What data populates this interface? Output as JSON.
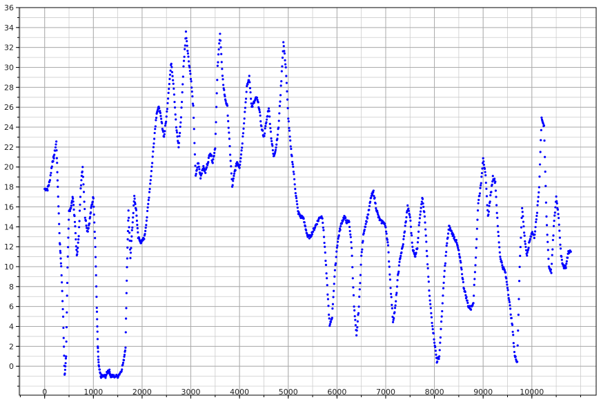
{
  "chart_data": {
    "type": "scatter",
    "title": "",
    "xlabel": "",
    "ylabel": "",
    "xlim": [
      -520,
      11320
    ],
    "ylim": [
      -2.9,
      36
    ],
    "x_major_ticks": [
      0,
      1000,
      2000,
      3000,
      4000,
      5000,
      6000,
      7000,
      8000,
      9000,
      10000
    ],
    "x_minor_step": 500,
    "y_major_ticks": [
      0,
      2,
      4,
      6,
      8,
      10,
      12,
      14,
      16,
      18,
      20,
      22,
      24,
      26,
      28,
      30,
      32,
      34,
      36
    ],
    "y_minor_step": 1,
    "grid": true,
    "legend": "none",
    "marker_color": "#0000ff",
    "series": [
      {
        "x": [
          0,
          60,
          100,
          160,
          190,
          240,
          270,
          310,
          340,
          380,
          410,
          440,
          470,
          500,
          540,
          580,
          620,
          660,
          700,
          740,
          780,
          830,
          880,
          920,
          960,
          1000,
          1040,
          1070,
          1090,
          1110,
          1150,
          1200,
          1250,
          1300,
          1330,
          1360,
          1420,
          1500,
          1570,
          1620,
          1660,
          1690,
          1720,
          1760,
          1800,
          1840,
          1880,
          1920,
          1960,
          2000,
          2050,
          2100,
          2150,
          2200,
          2250,
          2300,
          2350,
          2400,
          2450,
          2500,
          2550,
          2600,
          2650,
          2700,
          2750,
          2800,
          2850,
          2900,
          2950,
          3000,
          3050,
          3100,
          3150,
          3200,
          3250,
          3300,
          3350,
          3400,
          3450,
          3500,
          3550,
          3600,
          3650,
          3700,
          3750,
          3800,
          3850,
          3900,
          3950,
          4000,
          4050,
          4100,
          4150,
          4200,
          4250,
          4300,
          4350,
          4400,
          4450,
          4500,
          4550,
          4600,
          4650,
          4700,
          4750,
          4800,
          4850,
          4900,
          4950,
          5000,
          5050,
          5100,
          5150,
          5200,
          5250,
          5300,
          5350,
          5400,
          5450,
          5500,
          5550,
          5600,
          5650,
          5700,
          5750,
          5800,
          5850,
          5900,
          5950,
          6000,
          6050,
          6100,
          6150,
          6200,
          6250,
          6300,
          6350,
          6400,
          6450,
          6500,
          6550,
          6600,
          6650,
          6700,
          6750,
          6800,
          6850,
          6900,
          6950,
          7000,
          7050,
          7100,
          7150,
          7200,
          7250,
          7300,
          7350,
          7400,
          7450,
          7500,
          7550,
          7600,
          7650,
          7700,
          7750,
          7800,
          7850,
          7900,
          7950,
          8000,
          8050,
          8100,
          8150,
          8200,
          8250,
          8300,
          8350,
          8400,
          8450,
          8500,
          8550,
          8600,
          8650,
          8700,
          8750,
          8800,
          8850,
          8900,
          8950,
          9000,
          9050,
          9100,
          9150,
          9200,
          9250,
          9300,
          9350,
          9400,
          9450,
          9500,
          9550,
          9600,
          9650,
          9700,
          9750,
          9800,
          9850,
          9900,
          9950,
          10000,
          10050,
          10100,
          10150,
          10200,
          10250,
          10300,
          10350,
          10400,
          10450,
          10500,
          10550,
          10600,
          10650,
          10700,
          10750,
          10800
        ],
        "y": [
          17.8,
          17.8,
          18.5,
          20.5,
          21.0,
          22.5,
          18.0,
          12.5,
          10.0,
          5.0,
          -1.0,
          1.0,
          10.0,
          15.5,
          16.0,
          17.0,
          14.5,
          11.0,
          13.0,
          18.0,
          20.0,
          15.0,
          13.5,
          14.5,
          16.0,
          17.0,
          12.0,
          6.0,
          2.0,
          0.0,
          -1.0,
          -1.0,
          -1.0,
          -0.5,
          -0.5,
          -1.0,
          -1.0,
          -1.0,
          -0.5,
          0.5,
          2.0,
          10.0,
          15.5,
          11.0,
          14.0,
          17.0,
          15.5,
          13.0,
          12.5,
          12.5,
          13.0,
          15.0,
          17.5,
          20.0,
          23.0,
          25.5,
          26.0,
          24.5,
          23.0,
          25.0,
          28.0,
          30.5,
          28.0,
          24.0,
          22.0,
          25.0,
          30.0,
          33.5,
          31.0,
          29.0,
          26.0,
          19.0,
          20.5,
          19.0,
          20.0,
          19.5,
          20.5,
          21.5,
          20.5,
          22.0,
          30.0,
          33.5,
          29.0,
          27.0,
          26.0,
          22.0,
          18.0,
          19.5,
          20.5,
          20.0,
          22.0,
          25.0,
          28.0,
          29.0,
          26.0,
          26.5,
          27.0,
          26.0,
          24.0,
          23.0,
          24.5,
          26.0,
          23.0,
          21.0,
          22.0,
          24.0,
          28.0,
          32.5,
          30.0,
          25.0,
          22.0,
          20.0,
          17.5,
          15.5,
          15.0,
          15.0,
          14.0,
          13.0,
          13.0,
          13.5,
          14.0,
          14.5,
          15.0,
          15.0,
          12.0,
          8.0,
          4.0,
          5.0,
          9.0,
          12.0,
          13.5,
          14.5,
          15.0,
          14.5,
          14.5,
          12.0,
          6.0,
          3.0,
          6.0,
          11.0,
          13.5,
          14.5,
          15.5,
          17.0,
          17.5,
          16.0,
          15.0,
          14.5,
          14.5,
          14.0,
          12.0,
          8.0,
          4.5,
          6.0,
          9.0,
          11.0,
          12.0,
          14.0,
          16.0,
          15.0,
          12.0,
          11.0,
          12.0,
          15.0,
          17.0,
          15.0,
          11.0,
          7.0,
          4.5,
          2.5,
          0.5,
          1.0,
          5.0,
          9.0,
          12.0,
          14.0,
          13.5,
          13.0,
          12.5,
          11.5,
          10.0,
          8.0,
          7.0,
          6.0,
          5.8,
          6.5,
          11.0,
          16.5,
          18.0,
          21.0,
          19.0,
          15.0,
          17.0,
          19.0,
          18.5,
          14.0,
          11.0,
          10.0,
          9.5,
          8.0,
          6.0,
          4.0,
          1.0,
          0.5,
          10.0,
          16.0,
          13.0,
          11.0,
          12.5,
          13.5,
          13.0,
          15.0,
          18.0,
          25.0,
          24.0,
          15.0,
          10.0,
          9.5,
          14.0,
          17.0,
          15.0,
          11.0,
          10.0,
          10.0,
          11.5,
          11.5
        ]
      }
    ]
  }
}
